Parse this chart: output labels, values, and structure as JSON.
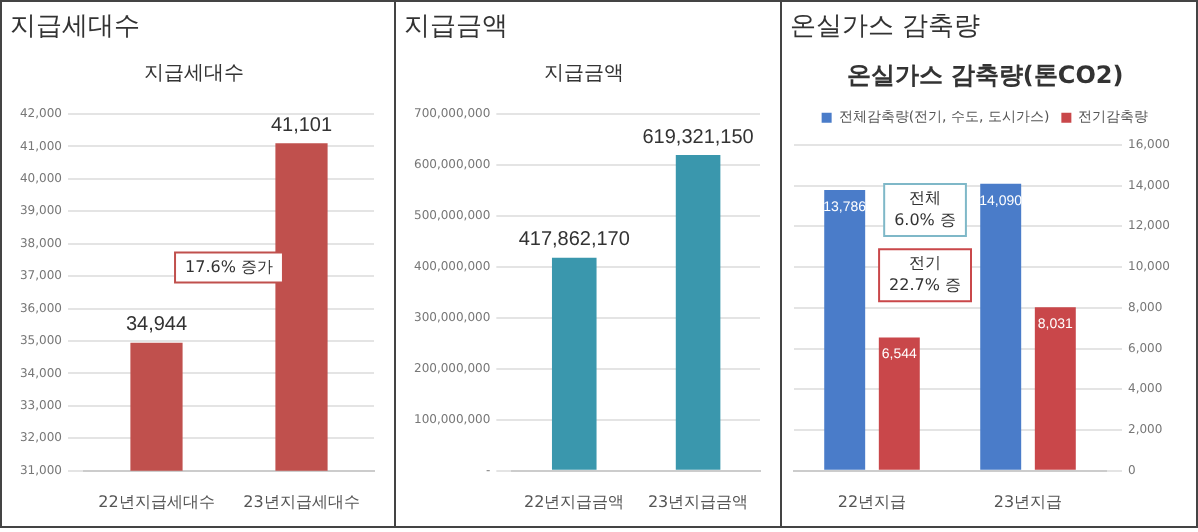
{
  "chart_data": [
    {
      "type": "bar",
      "title": "지급세대수",
      "subtitle": "지급세대수",
      "categories": [
        "22년지급세대수",
        "23년지급세대수"
      ],
      "values": [
        34944,
        41101
      ],
      "value_labels": [
        "34,944",
        "41,101"
      ],
      "color": "#c0504d",
      "ylim": [
        31000,
        42000
      ],
      "yticks": [
        {
          "value": 31000,
          "label": "31,000"
        },
        {
          "value": 32000,
          "label": "32,000"
        },
        {
          "value": 33000,
          "label": "33,000"
        },
        {
          "value": 34000,
          "label": "34,000"
        },
        {
          "value": 35000,
          "label": "35,000"
        },
        {
          "value": 36000,
          "label": "36,000"
        },
        {
          "value": 37000,
          "label": "37,000"
        },
        {
          "value": 38000,
          "label": "38,000"
        },
        {
          "value": 39000,
          "label": "39,000"
        },
        {
          "value": 40000,
          "label": "40,000"
        },
        {
          "value": 41000,
          "label": "41,000"
        },
        {
          "value": 42000,
          "label": "42,000"
        }
      ],
      "grid": "y",
      "annotations": [
        "17.6% 증가"
      ]
    },
    {
      "type": "bar",
      "title": "지급금액",
      "subtitle": "지급금액",
      "categories": [
        "22년지급금액",
        "23년지급금액"
      ],
      "values": [
        417862170,
        619321150
      ],
      "value_labels": [
        "417,862,170",
        "619,321,150"
      ],
      "color": "#3a97ad",
      "ylim": [
        0,
        700000000
      ],
      "yticks": [
        {
          "value": 0,
          "label": "-"
        },
        {
          "value": 100000000,
          "label": "100,000,000"
        },
        {
          "value": 200000000,
          "label": "200,000,000"
        },
        {
          "value": 300000000,
          "label": "300,000,000"
        },
        {
          "value": 400000000,
          "label": "400,000,000"
        },
        {
          "value": 500000000,
          "label": "500,000,000"
        },
        {
          "value": 600000000,
          "label": "600,000,000"
        },
        {
          "value": 700000000,
          "label": "700,000,000"
        }
      ],
      "grid": "y"
    },
    {
      "type": "bar",
      "title": "온실가스 감축량",
      "subtitle": "온실가스 감축량(톤CO2)",
      "categories": [
        "22년지급",
        "23년지급"
      ],
      "series": [
        {
          "name": "전체감축량(전기, 수도, 도시가스)",
          "color": "#4a7cc9",
          "values": [
            13786,
            14090
          ],
          "value_labels": [
            "13,786",
            "14,090"
          ]
        },
        {
          "name": "전기감축량",
          "color": "#c9474a",
          "values": [
            6544,
            8031
          ],
          "value_labels": [
            "6,544",
            "8,031"
          ]
        }
      ],
      "ylim": [
        0,
        16000
      ],
      "yticks": [
        0,
        {
          "value": 2000,
          "label": "2,000"
        },
        {
          "value": 4000,
          "label": "4,000"
        },
        {
          "value": 6000,
          "label": "6,000"
        },
        {
          "value": 8000,
          "label": "8,000"
        },
        {
          "value": 10000,
          "label": "10,000"
        },
        {
          "value": 12000,
          "label": "12,000"
        },
        {
          "value": 14000,
          "label": "14,000"
        },
        {
          "value": 16000,
          "label": "16,000"
        }
      ],
      "grid": "y",
      "legend": "top",
      "annotations": [
        "전체\n6.0% 증",
        "전기\n22.7% 증"
      ]
    }
  ]
}
